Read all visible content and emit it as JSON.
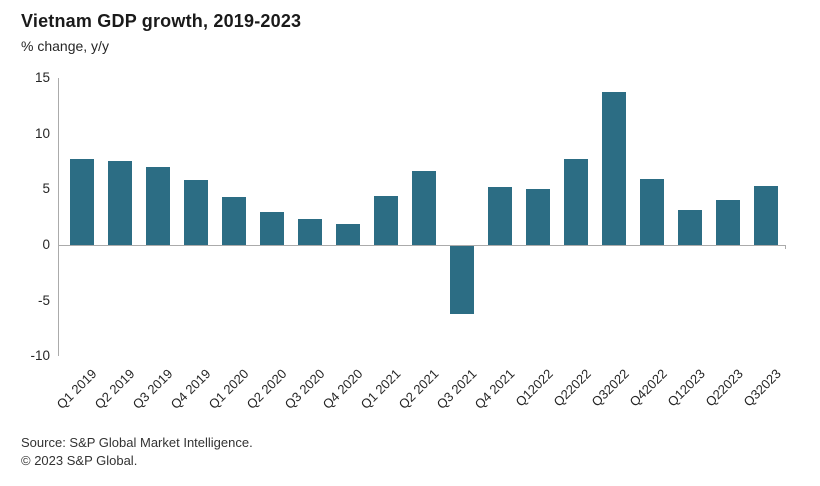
{
  "title": "Vietnam GDP growth, 2019-2023",
  "subtitle": "% change, y/y",
  "footer": {
    "source": "Source: S&P Global Market Intelligence.",
    "copyright": "© 2023 S&P Global."
  },
  "colors": {
    "bar": "#2C6D84",
    "axis": "#ABABAB",
    "tick_text": "#262626"
  },
  "chart_data": {
    "type": "bar",
    "title": "Vietnam GDP growth, 2019-2023",
    "subtitle": "% change, y/y",
    "ylabel": "% change, y/y",
    "xlabel": "",
    "categories": [
      "Q1 2019",
      "Q2 2019",
      "Q3 2019",
      "Q4 2019",
      "Q1 2020",
      "Q2 2020",
      "Q3 2020",
      "Q4 2020",
      "Q1 2021",
      "Q2 2021",
      "Q3 2021",
      "Q4 2021",
      "Q12022",
      "Q22022",
      "Q32022",
      "Q42022",
      "Q12023",
      "Q22023",
      "Q32023"
    ],
    "values": [
      7.7,
      7.5,
      7.0,
      5.8,
      4.3,
      3.0,
      2.3,
      1.9,
      4.4,
      6.6,
      -6.1,
      5.2,
      5.0,
      7.7,
      13.7,
      5.9,
      3.1,
      4.0,
      5.3
    ],
    "ylim": [
      -10,
      15
    ],
    "yticks": [
      15,
      10,
      5,
      0,
      -5,
      -10
    ],
    "grid": false,
    "legend": "none",
    "bar_color": "#2C6D84"
  }
}
